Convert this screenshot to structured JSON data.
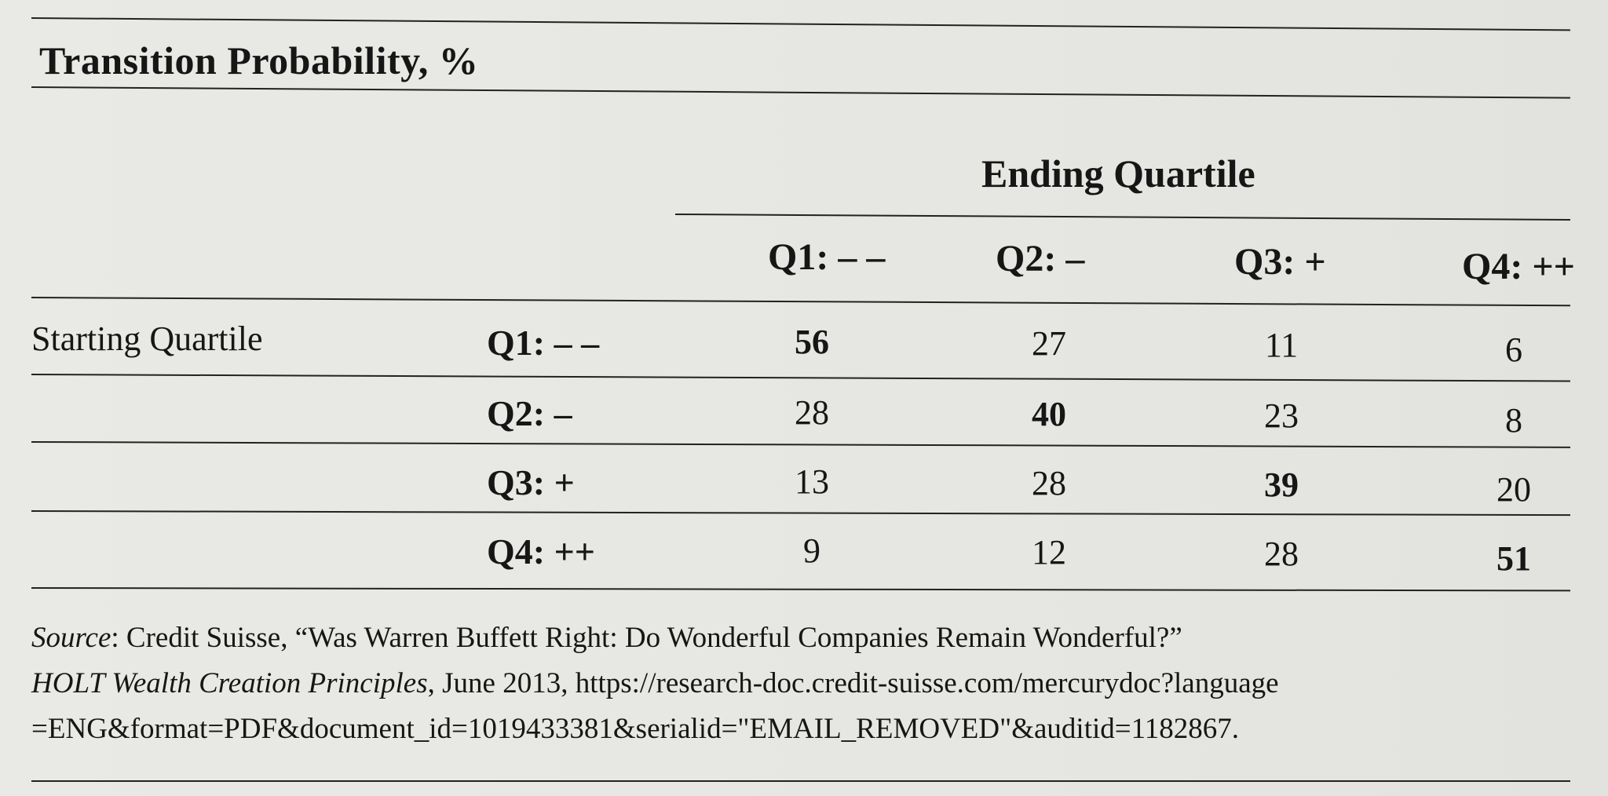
{
  "table": {
    "title": "Transition Probability, %",
    "column_group_label": "Ending Quartile",
    "row_group_label": "Starting Quartile",
    "columns": [
      "Q1: – –",
      "Q2: –",
      "Q3: +",
      "Q4: ++"
    ],
    "rows": [
      {
        "label": "Q1: – –",
        "values": [
          "56",
          "27",
          "11",
          "6"
        ]
      },
      {
        "label": "Q2: –",
        "values": [
          "28",
          "40",
          "23",
          "8"
        ]
      },
      {
        "label": "Q3: +",
        "values": [
          "13",
          "28",
          "39",
          "20"
        ]
      },
      {
        "label": "Q4: ++",
        "values": [
          "9",
          "12",
          "28",
          "51"
        ]
      }
    ]
  },
  "source": {
    "label": "Source",
    "line1": ": Credit Suisse, “Was Warren Buffett Right: Do Wonderful Companies Remain Wonderful?”",
    "publication": "HOLT Wealth Creation Principles",
    "line2_rest": ", June 2013, https://research-doc.credit-suisse.com/mercurydoc?language",
    "line3": "=ENG&format=PDF&document_id=1019433381&serialid=\"EMAIL_REMOVED\"&auditid=1182867."
  }
}
